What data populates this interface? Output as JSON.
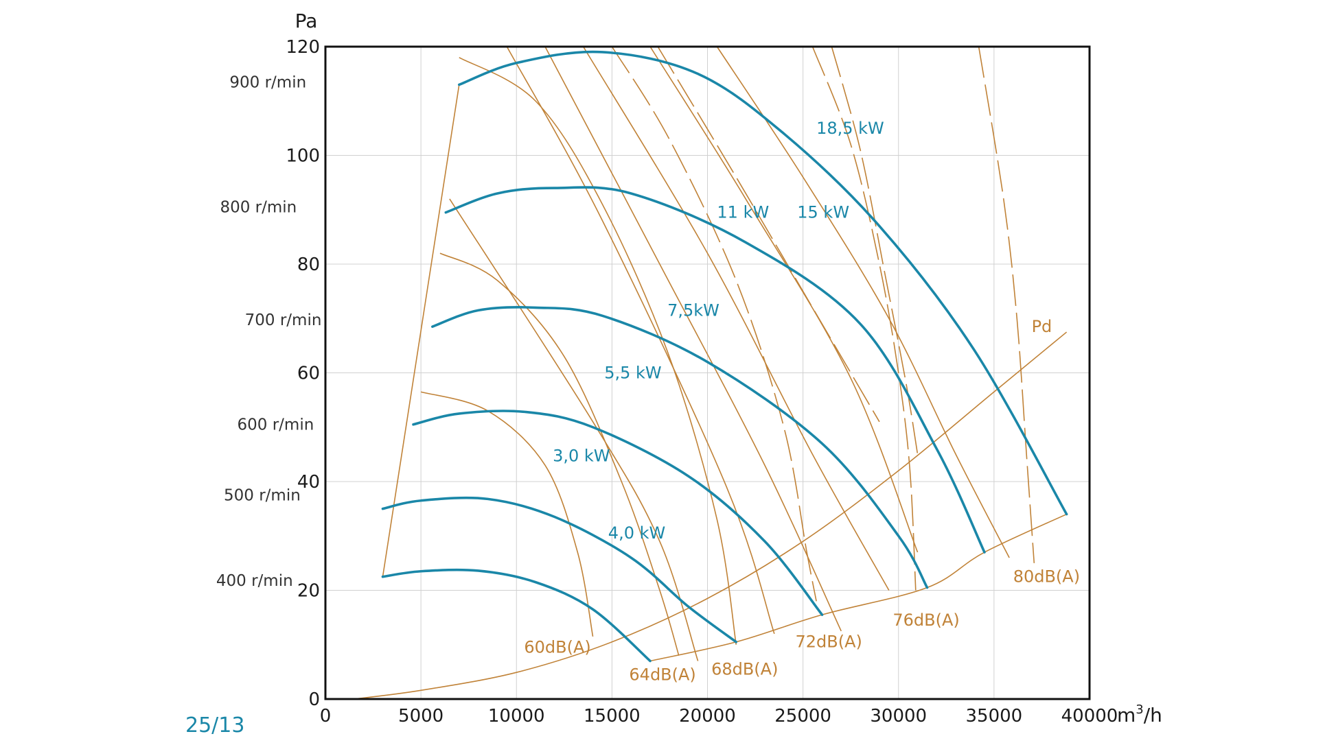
{
  "colors": {
    "blue": "#1a87a8",
    "brown": "#c08237",
    "grid": "#d0d0d0",
    "axis": "#111111"
  },
  "footer_code": "25/13",
  "chart_data": {
    "type": "line",
    "title": "",
    "xunit_main": "m",
    "xunit_sup": "3",
    "xunit_tail": "/h",
    "yunit": "Pa",
    "xlim": [
      0,
      40000
    ],
    "ylim": [
      0,
      120
    ],
    "xticks": [
      0,
      5000,
      10000,
      15000,
      20000,
      25000,
      30000,
      35000,
      40000
    ],
    "xtick_labels": [
      "0",
      "5000",
      "10000",
      "15000",
      "20000",
      "25000",
      "30000",
      "35000",
      "40000"
    ],
    "yticks": [
      0,
      20,
      40,
      60,
      80,
      100,
      120
    ],
    "ytick_labels": [
      "0",
      "20",
      "40",
      "60",
      "80",
      "100",
      "120"
    ],
    "grid": true,
    "speed_curves": [
      {
        "label": "400 r/min",
        "label_at": [
          -1700,
          20.8
        ],
        "points": [
          [
            3000,
            22.5
          ],
          [
            5000,
            23.5
          ],
          [
            8000,
            23.6
          ],
          [
            11000,
            21.5
          ],
          [
            14000,
            16.5
          ],
          [
            17000,
            7
          ]
        ]
      },
      {
        "label": "500 r/min",
        "label_at": [
          -1300,
          36.5
        ],
        "points": [
          [
            3000,
            35
          ],
          [
            5000,
            36.5
          ],
          [
            8500,
            36.8
          ],
          [
            12000,
            33.5
          ],
          [
            16000,
            26
          ],
          [
            19000,
            17
          ],
          [
            21500,
            10.5
          ]
        ]
      },
      {
        "label": "600 r/min",
        "label_at": [
          -600,
          49.5
        ],
        "points": [
          [
            4600,
            50.5
          ],
          [
            7000,
            52.5
          ],
          [
            10500,
            52.8
          ],
          [
            14000,
            50
          ],
          [
            19000,
            41
          ],
          [
            23000,
            29
          ],
          [
            26000,
            15.5
          ]
        ]
      },
      {
        "label": "700 r/min",
        "label_at": [
          -200,
          68.8
        ],
        "points": [
          [
            5600,
            68.5
          ],
          [
            8000,
            71.5
          ],
          [
            11000,
            72
          ],
          [
            14500,
            70.5
          ],
          [
            20000,
            62
          ],
          [
            26000,
            47
          ],
          [
            30000,
            30
          ],
          [
            31500,
            20.5
          ]
        ]
      },
      {
        "label": "800 r/min",
        "label_at": [
          -1500,
          89.5
        ],
        "points": [
          [
            6300,
            89.5
          ],
          [
            9000,
            93
          ],
          [
            12000,
            94
          ],
          [
            16000,
            93
          ],
          [
            22000,
            84
          ],
          [
            28000,
            69
          ],
          [
            32000,
            46
          ],
          [
            34500,
            27
          ]
        ]
      },
      {
        "label": "900 r/min",
        "label_at": [
          -1000,
          112.5
        ],
        "points": [
          [
            7000,
            113
          ],
          [
            10000,
            117
          ],
          [
            14500,
            119
          ],
          [
            19500,
            115
          ],
          [
            24000,
            104
          ],
          [
            29000,
            87
          ],
          [
            34000,
            64
          ],
          [
            38800,
            34
          ]
        ]
      }
    ],
    "surge_line": [
      [
        3000,
        22.5
      ],
      [
        7000,
        113
      ]
    ],
    "pd_curve": {
      "label": "Pd",
      "label_at": [
        37500,
        67.5
      ],
      "points": [
        [
          1500,
          0
        ],
        [
          5000,
          1.6
        ],
        [
          10000,
          4.9
        ],
        [
          15000,
          10.5
        ],
        [
          20000,
          18.5
        ],
        [
          25000,
          29
        ],
        [
          30000,
          42
        ],
        [
          35000,
          56.5
        ],
        [
          38800,
          67.5
        ]
      ]
    },
    "system_curve": [
      [
        17000,
        7
      ],
      [
        21500,
        10.5
      ],
      [
        26000,
        15.5
      ],
      [
        31500,
        20.5
      ],
      [
        34500,
        27
      ],
      [
        38800,
        34
      ]
    ],
    "power_lines": [
      {
        "label": "3,0 kW",
        "label_at": [
          11900,
          43.7
        ],
        "points": [
          [
            6500,
            92
          ],
          [
            14000,
            51
          ],
          [
            17500,
            29
          ],
          [
            19500,
            7
          ]
        ]
      },
      {
        "label": "4,0 kW",
        "label_at": [
          14800,
          29.5
        ],
        "points": [
          [
            9500,
            120
          ],
          [
            14500,
            88
          ],
          [
            21000,
            39
          ],
          [
            23500,
            12
          ]
        ]
      },
      {
        "label": "5,5 kW",
        "label_at": [
          14600,
          59
        ],
        "points": [
          [
            11500,
            120
          ],
          [
            17500,
            80
          ],
          [
            23000,
            43
          ],
          [
            27000,
            12.5
          ]
        ]
      },
      {
        "label": "7,5kW",
        "label_at": [
          17900,
          70.5
        ],
        "points": [
          [
            13500,
            120
          ],
          [
            20000,
            82
          ],
          [
            25500,
            45
          ],
          [
            29500,
            20
          ]
        ]
      },
      {
        "label": "11 kW",
        "label_at": [
          20500,
          88.5
        ],
        "points": [
          [
            17000,
            120
          ],
          [
            22000,
            92
          ],
          [
            27500,
            59
          ],
          [
            31000,
            27
          ]
        ]
      },
      {
        "label": "15 kW",
        "label_at": [
          24700,
          88.5
        ],
        "points": [
          [
            20500,
            120
          ],
          [
            25000,
            96
          ],
          [
            29500,
            70
          ],
          [
            33000,
            45
          ],
          [
            35800,
            26
          ]
        ]
      }
    ],
    "db_lines": [
      {
        "label": "60dB(A)",
        "label_at": [
          10400,
          8.5
        ],
        "dashed": false,
        "points": [
          [
            5000,
            56.5
          ],
          [
            8500,
            53
          ],
          [
            11500,
            43
          ],
          [
            13200,
            27
          ],
          [
            14000,
            11.5
          ]
        ]
      },
      {
        "label": "64dB(A)",
        "label_at": [
          15900,
          3.5
        ],
        "dashed": false,
        "points": [
          [
            6000,
            82
          ],
          [
            9000,
            77
          ],
          [
            12500,
            63
          ],
          [
            15500,
            40
          ],
          [
            17500,
            20
          ],
          [
            18500,
            8
          ]
        ]
      },
      {
        "label": "68dB(A)",
        "label_at": [
          20200,
          4.5
        ],
        "dashed": false,
        "points": [
          [
            7000,
            118
          ],
          [
            11000,
            110
          ],
          [
            14500,
            91
          ],
          [
            18000,
            63
          ],
          [
            20500,
            33
          ],
          [
            21500,
            10
          ]
        ]
      },
      {
        "label": "72dB(A)",
        "label_at": [
          24600,
          9.5
        ],
        "dashed": true,
        "points": [
          [
            15000,
            120
          ],
          [
            18000,
            103
          ],
          [
            21500,
            77
          ],
          [
            24000,
            50
          ],
          [
            25200,
            27
          ],
          [
            25700,
            18
          ]
        ]
      },
      {
        "label": "76dB(A)",
        "label_at": [
          29700,
          13.5
        ],
        "dashed": true,
        "points": [
          [
            25500,
            120
          ],
          [
            27500,
            102
          ],
          [
            29000,
            80
          ],
          [
            30000,
            60
          ],
          [
            30600,
            42
          ],
          [
            30900,
            20
          ]
        ]
      },
      {
        "label": "80dB(A)",
        "label_at": [
          36000,
          21.5
        ],
        "dashed": true,
        "points": [
          [
            34200,
            120
          ],
          [
            35500,
            92
          ],
          [
            36200,
            70
          ],
          [
            36700,
            45
          ],
          [
            37100,
            25
          ]
        ]
      }
    ],
    "other_lines": [
      {
        "points": [
          [
            26500,
            120
          ],
          [
            28000,
            101
          ],
          [
            29300,
            78
          ],
          [
            30400,
            58
          ],
          [
            31000,
            45
          ]
        ]
      },
      {
        "points": [
          [
            17400,
            120
          ],
          [
            21500,
            96
          ],
          [
            25500,
            72
          ],
          [
            29000,
            51
          ]
        ]
      }
    ],
    "power_label_18": {
      "label": "18,5 kW",
      "label_at": [
        25700,
        104
      ]
    }
  }
}
